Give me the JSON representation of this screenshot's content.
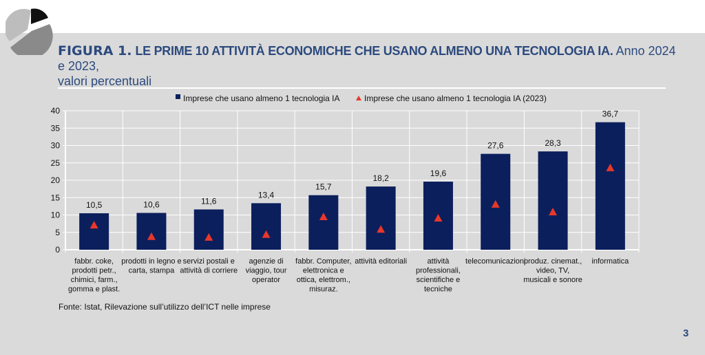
{
  "header": {
    "figure_label": "FIGURA 1.",
    "title_caps": "LE PRIME 10 ATTIVITÀ ECONOMICHE CHE USANO ALMENO UNA TECNOLOGIA IA.",
    "title_rest": "Anno 2024 e 2023,",
    "subtitle": "valori percentuali"
  },
  "chart_data": {
    "type": "bar",
    "title": "LE PRIME 10 ATTIVITÀ ECONOMICHE CHE USANO ALMENO UNA TECNOLOGIA IA. Anno 2024 e 2023, valori percentuali",
    "categories": [
      [
        "fabbr. coke,",
        "prodotti petr.,",
        "chimici, farm.,",
        "gomma e plast."
      ],
      [
        "prodotti in legno e",
        "carta, stampa"
      ],
      [
        "servizi postali e",
        "attività di corriere"
      ],
      [
        "agenzie di",
        "viaggio, tour",
        "operator"
      ],
      [
        "fabbr. Computer,",
        "elettronica e",
        "ottica, elettrom.,",
        "misuraz."
      ],
      [
        "attività editoriali"
      ],
      [
        "attività",
        "professionali,",
        "scientifiche e",
        "tecniche"
      ],
      [
        "telecomunicazioni"
      ],
      [
        "produz. cinemat.,",
        "video, TV,",
        "musicali e sonore"
      ],
      [
        "informatica"
      ]
    ],
    "series": [
      {
        "name": "Imprese che usano almeno 1 tecnologia IA",
        "kind": "bar",
        "color": "#0b1f5c",
        "values": [
          10.5,
          10.6,
          11.6,
          13.4,
          15.7,
          18.2,
          19.6,
          27.6,
          28.3,
          36.7
        ],
        "labels": [
          "10,5",
          "10,6",
          "11,6",
          "13,4",
          "15,7",
          "18,2",
          "19,6",
          "27,6",
          "28,3",
          "36,7"
        ]
      },
      {
        "name": "Imprese che usano almeno 1 tecnologia IA (2023)",
        "kind": "marker-triangle",
        "color": "#e8372a",
        "values": [
          7.1,
          3.8,
          3.6,
          4.4,
          9.5,
          5.9,
          9.1,
          13.1,
          10.9,
          23.6
        ]
      }
    ],
    "yticks": [
      "0",
      "5",
      "10",
      "15",
      "20",
      "25",
      "30",
      "35",
      "40"
    ],
    "ylim": [
      0,
      40
    ],
    "grid": true,
    "legend": "top",
    "xlabel": "",
    "ylabel": ""
  },
  "footer": {
    "source": "Fonte: Istat, Rilevazione sull’utilizzo dell’ICT nelle imprese",
    "page_number": "3"
  }
}
